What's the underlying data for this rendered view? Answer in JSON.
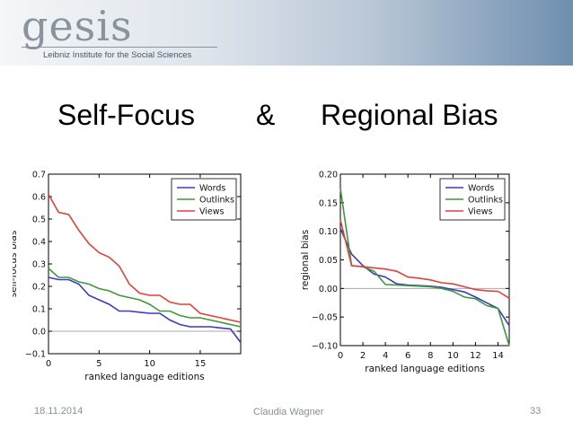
{
  "header": {
    "logo_word": "gesis",
    "logo_tagline": "Leibniz Institute for the Social Sciences"
  },
  "title": {
    "left": "Self-Focus",
    "amp": "&",
    "right": "Regional Bias"
  },
  "footer": {
    "date": "18.11.2014",
    "author": "Claudia Wagner",
    "page": "33"
  },
  "colors": {
    "Words": "#3a3ac0",
    "Outlinks": "#3c9a3c",
    "Views": "#e0413b"
  },
  "chart_data": [
    {
      "type": "line",
      "xlabel": "ranked language editions",
      "ylabel": "self-focus bias",
      "xlim": [
        0,
        19
      ],
      "ylim": [
        -0.1,
        0.7
      ],
      "xticks": [
        0,
        5,
        10,
        15
      ],
      "yticks": [
        -0.1,
        0.0,
        0.1,
        0.2,
        0.3,
        0.4,
        0.5,
        0.6,
        0.7
      ],
      "ytick_labels": [
        "−0.1",
        "0.0",
        "0.1",
        "0.2",
        "0.3",
        "0.4",
        "0.5",
        "0.6",
        "0.7"
      ],
      "zero_line": true,
      "legend": "top-right",
      "x": [
        0,
        1,
        2,
        3,
        4,
        5,
        6,
        7,
        8,
        9,
        10,
        11,
        12,
        13,
        14,
        15,
        16,
        17,
        18,
        19
      ],
      "series": [
        {
          "name": "Words",
          "values": [
            0.24,
            0.23,
            0.23,
            0.21,
            0.16,
            0.14,
            0.12,
            0.09,
            0.09,
            0.085,
            0.08,
            0.08,
            0.05,
            0.03,
            0.02,
            0.02,
            0.02,
            0.015,
            0.01,
            -0.05
          ]
        },
        {
          "name": "Outlinks",
          "values": [
            0.28,
            0.24,
            0.24,
            0.22,
            0.21,
            0.19,
            0.18,
            0.16,
            0.15,
            0.14,
            0.12,
            0.09,
            0.09,
            0.07,
            0.06,
            0.06,
            0.05,
            0.04,
            0.03,
            0.02
          ]
        },
        {
          "name": "Views",
          "values": [
            0.61,
            0.53,
            0.52,
            0.45,
            0.39,
            0.35,
            0.33,
            0.29,
            0.21,
            0.17,
            0.16,
            0.16,
            0.13,
            0.12,
            0.12,
            0.08,
            0.07,
            0.06,
            0.05,
            0.04
          ]
        }
      ]
    },
    {
      "type": "line",
      "xlabel": "ranked language editions",
      "ylabel": "regional bias",
      "xlim": [
        0,
        15
      ],
      "ylim": [
        -0.1,
        0.2
      ],
      "xticks": [
        0,
        2,
        4,
        6,
        8,
        10,
        12,
        14
      ],
      "yticks": [
        -0.1,
        -0.05,
        0.0,
        0.05,
        0.1,
        0.15,
        0.2
      ],
      "ytick_labels": [
        "−0.10",
        "−0.05",
        "0.00",
        "0.05",
        "0.10",
        "0.15",
        "0.20"
      ],
      "zero_line": true,
      "legend": "top-right",
      "x": [
        0,
        1,
        2,
        3,
        4,
        5,
        6,
        7,
        8,
        9,
        10,
        11,
        12,
        13,
        14,
        15
      ],
      "series": [
        {
          "name": "Words",
          "values": [
            0.105,
            0.06,
            0.04,
            0.025,
            0.02,
            0.008,
            0.006,
            0.005,
            0.004,
            0.002,
            -0.002,
            -0.006,
            -0.015,
            -0.025,
            -0.035,
            -0.065
          ]
        },
        {
          "name": "Outlinks",
          "values": [
            0.175,
            0.04,
            0.038,
            0.03,
            0.007,
            0.006,
            0.005,
            0.004,
            0.003,
            0.0,
            -0.005,
            -0.015,
            -0.018,
            -0.03,
            -0.035,
            -0.1
          ]
        },
        {
          "name": "Views",
          "values": [
            0.12,
            0.04,
            0.038,
            0.036,
            0.034,
            0.03,
            0.02,
            0.018,
            0.015,
            0.01,
            0.008,
            0.003,
            -0.002,
            -0.004,
            -0.005,
            -0.017
          ]
        }
      ]
    }
  ]
}
